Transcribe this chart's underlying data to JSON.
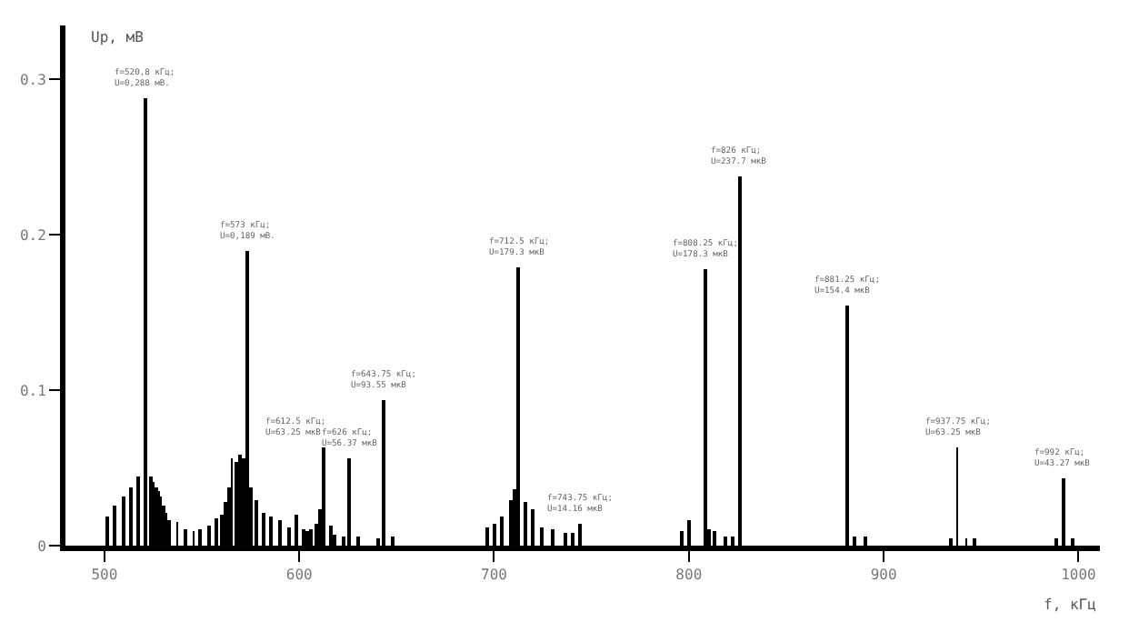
{
  "chart_data": {
    "type": "bar",
    "xlabel": "f, кГц",
    "ylabel": "Uр, мВ",
    "x": [
      501.9,
      505.6,
      510,
      513.7,
      517.4,
      520.8,
      523.7,
      525.2,
      526.5,
      527.7,
      529,
      530.2,
      531.5,
      533,
      537.4,
      542,
      545.8,
      549.5,
      553.9,
      557.6,
      560.1,
      561.7,
      563.9,
      565.4,
      567.6,
      569.8,
      571.3,
      573,
      575.1,
      577.6,
      581.9,
      585.7,
      589.7,
      594.4,
      598.1,
      601.9,
      603.7,
      605.6,
      608.4,
      610.6,
      612.5,
      615.9,
      617.8,
      622.4,
      626,
      630.2,
      640.2,
      643.75,
      648,
      696.3,
      700,
      703.7,
      708.4,
      710.3,
      712.5,
      715.9,
      719.6,
      724.6,
      730.2,
      736.4,
      740.2,
      743.75,
      796,
      799.7,
      808.25,
      810,
      813.6,
      818.4,
      822.4,
      826,
      881.25,
      885.4,
      890.7,
      934.6,
      937.75,
      942.4,
      946.7,
      988.5,
      992,
      996.9
    ],
    "values": [
      0.019,
      0.026,
      0.031,
      0.038,
      0.044,
      0.288,
      0.044,
      0.041,
      0.038,
      0.035,
      0.031,
      0.026,
      0.021,
      0.016,
      0.015,
      0.011,
      0.009,
      0.011,
      0.013,
      0.017,
      0.02,
      0.028,
      0.038,
      0.056,
      0.054,
      0.058,
      0.056,
      0.189,
      0.038,
      0.029,
      0.021,
      0.019,
      0.016,
      0.012,
      0.02,
      0.011,
      0.009,
      0.011,
      0.014,
      0.023,
      0.06325,
      0.013,
      0.007,
      0.006,
      0.05637,
      0.006,
      0.005,
      0.09355,
      0.006,
      0.012,
      0.014,
      0.019,
      0.029,
      0.036,
      0.1793,
      0.028,
      0.023,
      0.012,
      0.01,
      0.008,
      0.008,
      0.01416,
      0.009,
      0.016,
      0.1783,
      0.011,
      0.009,
      0.006,
      0.006,
      0.2377,
      0.1544,
      0.006,
      0.006,
      0.005,
      0.06325,
      0.005,
      0.005,
      0.005,
      0.04327,
      0.005
    ],
    "color": "#000000",
    "xlim": [
      480,
      1011
    ],
    "xticks": [
      500,
      600,
      700,
      800,
      900,
      1000
    ],
    "ylim": [
      0,
      0.3345
    ],
    "yticks": [
      0,
      0.1,
      0.2,
      0.3
    ],
    "annotations": [
      {
        "text": "f=520,8 кГц;\nU=0,288 мВ.",
        "x": 520.8,
        "y": 0.288
      },
      {
        "text": "f=573 кГц;\nU=0,189 мВ.",
        "x": 573,
        "y": 0.189
      },
      {
        "text": "f=612.5 кГц;\nU=63.25 мкВ",
        "x": 612.5,
        "y": 0.06325
      },
      {
        "text": "f=626 кГц;\nU=56.37 мкВ",
        "x": 626,
        "y": 0.05637
      },
      {
        "text": "f=643.75 кГц;\nU=93.55 мкВ",
        "x": 643.75,
        "y": 0.09355
      },
      {
        "text": "f=712.5 кГц;\nU=179.3 мкВ",
        "x": 712.5,
        "y": 0.1793
      },
      {
        "text": "f=743.75 кГц;\nU=14.16 мкВ",
        "x": 743.75,
        "y": 0.01416
      },
      {
        "text": "f=808.25 кГц;\nU=178.3 мкВ",
        "x": 808.25,
        "y": 0.1783
      },
      {
        "text": "f=826 кГц;\nU=237.7 мкВ",
        "x": 826,
        "y": 0.2377
      },
      {
        "text": "f=881.25 кГц;\nU=154.4 мкВ",
        "x": 881.25,
        "y": 0.1544
      },
      {
        "text": "f=937.75 кГц;\nU=63.25 мкВ",
        "x": 937.75,
        "y": 0.06325
      },
      {
        "text": "f=992 кГц;\nU=43.27 мкВ",
        "x": 992,
        "y": 0.04327
      }
    ]
  }
}
